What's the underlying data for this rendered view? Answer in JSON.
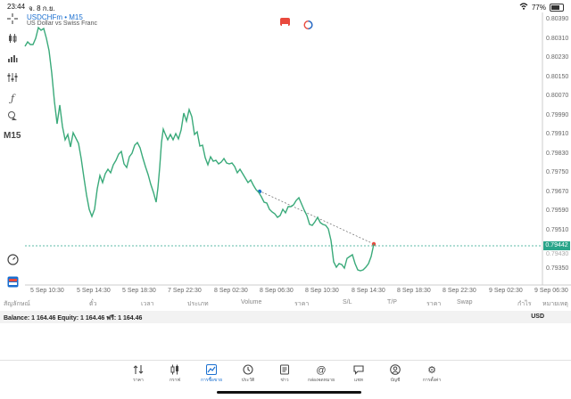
{
  "status_bar": {
    "time": "23:44",
    "date": "จ. 8 ก.ย.",
    "battery": "77%"
  },
  "chart": {
    "symbol": "USDCHFm • M15",
    "description": "US Dollar vs Swiss Franc",
    "timeframe": "M15",
    "current_price": "0.79442",
    "line_color": "#3aaa7a",
    "price_ticks": [
      "0.80390",
      "0.80310",
      "0.80230",
      "0.80150",
      "0.80070",
      "0.79990",
      "0.79910",
      "0.79830",
      "0.79750",
      "0.79670",
      "0.79590",
      "0.79510",
      "0.79430",
      "0.79350"
    ],
    "time_ticks": [
      "5 Sep 10:30",
      "5 Sep 14:30",
      "5 Sep 18:30",
      "7 Sep 22:30",
      "8 Sep 02:30",
      "8 Sep 06:30",
      "8 Sep 10:30",
      "8 Sep 14:30",
      "8 Sep 18:30",
      "8 Sep 22:30",
      "9 Sep 02:30",
      "9 Sep 06:30"
    ]
  },
  "table": {
    "headers": [
      "สัญลักษณ์",
      "ตั๋ว",
      "เวลา",
      "ประเภท",
      "Volume",
      "ราคา",
      "S/L",
      "T/P",
      "ราคา",
      "Swap",
      "กำไร",
      "หมายเหตุ"
    ],
    "balance_line": "Balance: 1 164.46 Equity: 1 164.46 ฟรี: 1 164.46",
    "currency": "USD"
  },
  "nav": {
    "items": [
      {
        "label": "ราคา",
        "icon": "quotes-icon"
      },
      {
        "label": "กราฟ",
        "icon": "candles-icon"
      },
      {
        "label": "การซื้อขาย",
        "icon": "trade-chart-icon"
      },
      {
        "label": "ประวัติ",
        "icon": "history-icon"
      },
      {
        "label": "ข่าว",
        "icon": "news-icon"
      },
      {
        "label": "กล่องจดหมาย",
        "icon": "mailbox-icon"
      },
      {
        "label": "แชท",
        "icon": "chat-icon"
      },
      {
        "label": "บัญชี",
        "icon": "account-icon"
      },
      {
        "label": "การตั้งค่า",
        "icon": "settings-icon"
      }
    ]
  }
}
